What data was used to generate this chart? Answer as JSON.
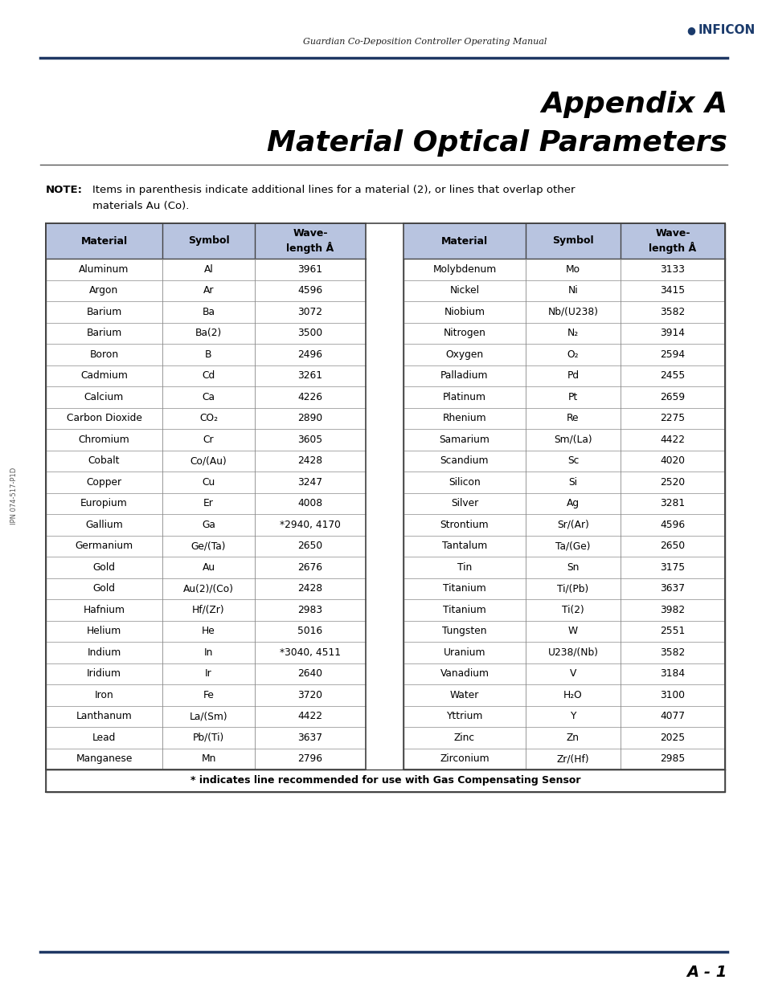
{
  "header_text": "Guardian Co-Deposition Controller Operating Manual",
  "title_line1": "Appendix A",
  "title_line2": "Material Optical Parameters",
  "col_headers_left": [
    "Material",
    "Symbol",
    "Wave-\nlength Å"
  ],
  "col_headers_right": [
    "Material",
    "Symbol",
    "Wave-\nlength Å"
  ],
  "left_data": [
    [
      "Aluminum",
      "Al",
      "3961"
    ],
    [
      "Argon",
      "Ar",
      "4596"
    ],
    [
      "Barium",
      "Ba",
      "3072"
    ],
    [
      "Barium",
      "Ba(2)",
      "3500"
    ],
    [
      "Boron",
      "B",
      "2496"
    ],
    [
      "Cadmium",
      "Cd",
      "3261"
    ],
    [
      "Calcium",
      "Ca",
      "4226"
    ],
    [
      "Carbon Dioxide",
      "CO₂",
      "2890"
    ],
    [
      "Chromium",
      "Cr",
      "3605"
    ],
    [
      "Cobalt",
      "Co/(Au)",
      "2428"
    ],
    [
      "Copper",
      "Cu",
      "3247"
    ],
    [
      "Europium",
      "Er",
      "4008"
    ],
    [
      "Gallium",
      "Ga",
      "*2940, 4170"
    ],
    [
      "Germanium",
      "Ge/(Ta)",
      "2650"
    ],
    [
      "Gold",
      "Au",
      "2676"
    ],
    [
      "Gold",
      "Au(2)/(Co)",
      "2428"
    ],
    [
      "Hafnium",
      "Hf/(Zr)",
      "2983"
    ],
    [
      "Helium",
      "He",
      "5016"
    ],
    [
      "Indium",
      "In",
      "*3040, 4511"
    ],
    [
      "Iridium",
      "Ir",
      "2640"
    ],
    [
      "Iron",
      "Fe",
      "3720"
    ],
    [
      "Lanthanum",
      "La/(Sm)",
      "4422"
    ],
    [
      "Lead",
      "Pb/(Ti)",
      "3637"
    ],
    [
      "Manganese",
      "Mn",
      "2796"
    ]
  ],
  "right_data": [
    [
      "Molybdenum",
      "Mo",
      "3133"
    ],
    [
      "Nickel",
      "Ni",
      "3415"
    ],
    [
      "Niobium",
      "Nb/(U238)",
      "3582"
    ],
    [
      "Nitrogen",
      "N₂",
      "3914"
    ],
    [
      "Oxygen",
      "O₂",
      "2594"
    ],
    [
      "Palladium",
      "Pd",
      "2455"
    ],
    [
      "Platinum",
      "Pt",
      "2659"
    ],
    [
      "Rhenium",
      "Re",
      "2275"
    ],
    [
      "Samarium",
      "Sm/(La)",
      "4422"
    ],
    [
      "Scandium",
      "Sc",
      "4020"
    ],
    [
      "Silicon",
      "Si",
      "2520"
    ],
    [
      "Silver",
      "Ag",
      "3281"
    ],
    [
      "Strontium",
      "Sr/(Ar)",
      "4596"
    ],
    [
      "Tantalum",
      "Ta/(Ge)",
      "2650"
    ],
    [
      "Tin",
      "Sn",
      "3175"
    ],
    [
      "Titanium",
      "Ti/(Pb)",
      "3637"
    ],
    [
      "Titanium",
      "Ti(2)",
      "3982"
    ],
    [
      "Tungsten",
      "W",
      "2551"
    ],
    [
      "Uranium",
      "U238/(Nb)",
      "3582"
    ],
    [
      "Vanadium",
      "V",
      "3184"
    ],
    [
      "Water",
      "H₂O",
      "3100"
    ],
    [
      "Yttrium",
      "Y",
      "4077"
    ],
    [
      "Zinc",
      "Zn",
      "2025"
    ],
    [
      "Zirconium",
      "Zr/(Hf)",
      "2985"
    ]
  ],
  "footer_note": "* indicates line recommended for use with Gas Compensating Sensor",
  "page_label": "A - 1",
  "header_color": "#1f3864",
  "table_header_bg": "#b8c4e0",
  "background_color": "#ffffff",
  "side_text": "IPN 074-517-P1D"
}
